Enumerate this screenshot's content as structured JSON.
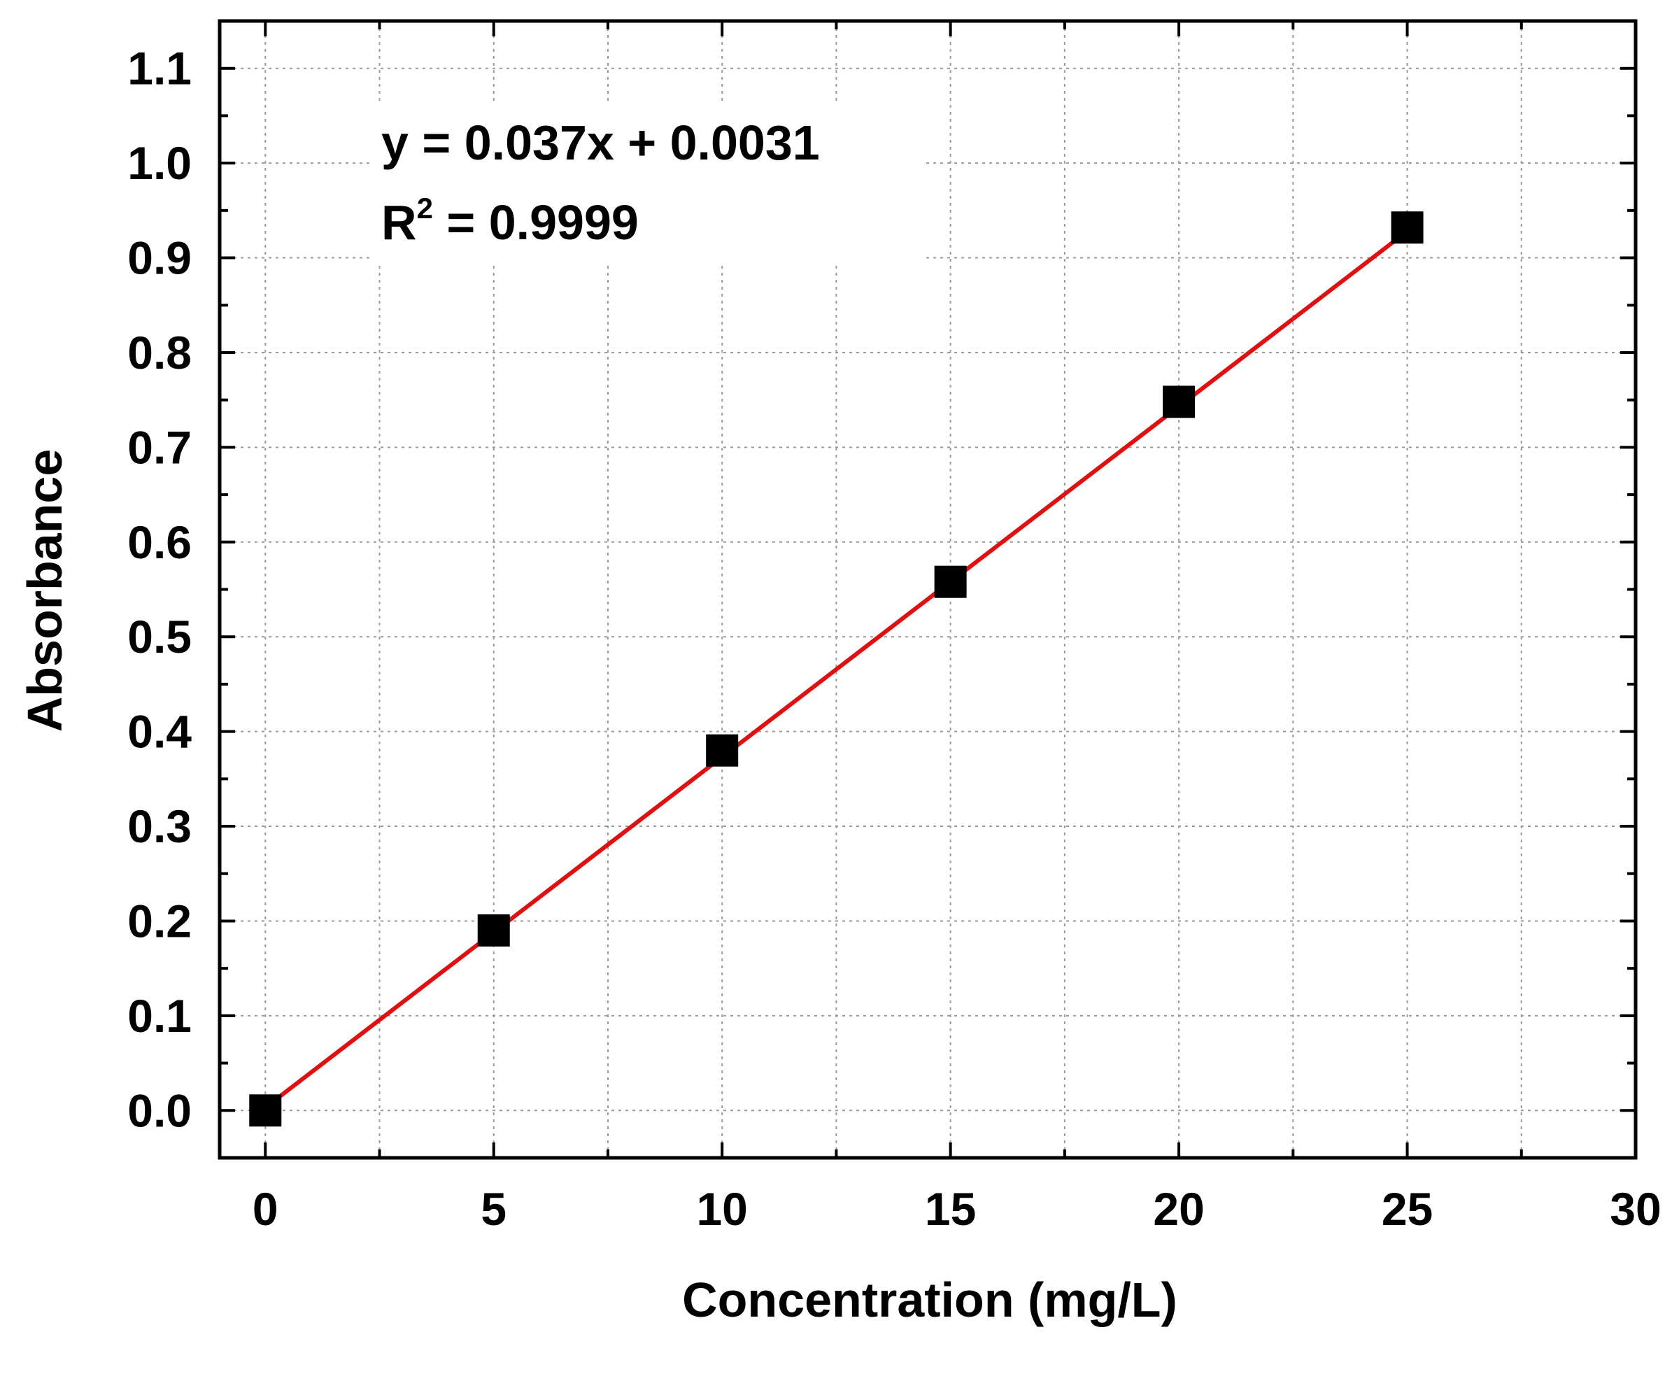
{
  "chart_data": {
    "type": "scatter",
    "xlabel": "Concentration (mg/L)",
    "ylabel": "Absorbance",
    "xlim": [
      -1,
      30
    ],
    "ylim": [
      -0.05,
      1.15
    ],
    "x_ticks": [
      "0",
      "5",
      "10",
      "15",
      "20",
      "25",
      "30"
    ],
    "x_tick_values": [
      0,
      5,
      10,
      15,
      20,
      25,
      30
    ],
    "y_ticks": [
      "0.0",
      "0.1",
      "0.2",
      "0.3",
      "0.4",
      "0.5",
      "0.6",
      "0.7",
      "0.8",
      "0.9",
      "1.0",
      "1.1"
    ],
    "y_tick_values": [
      0,
      0.1,
      0.2,
      0.3,
      0.4,
      0.5,
      0.6,
      0.7,
      0.8,
      0.9,
      1.0,
      1.1
    ],
    "grid": true,
    "points": {
      "x": [
        0,
        5,
        10,
        15,
        20,
        25
      ],
      "y": [
        0.0,
        0.19,
        0.38,
        0.558,
        0.748,
        0.932
      ],
      "marker": "square",
      "color": "#000000"
    },
    "fit": {
      "slope": 0.037,
      "intercept": 0.0031,
      "x_range": [
        0,
        25
      ],
      "color": "#e01010"
    },
    "annotation": {
      "equation": "y = 0.037x + 0.0031",
      "r2_prefix": "R",
      "r2_sup": "2",
      "r2_value": " = 0.9999"
    }
  }
}
